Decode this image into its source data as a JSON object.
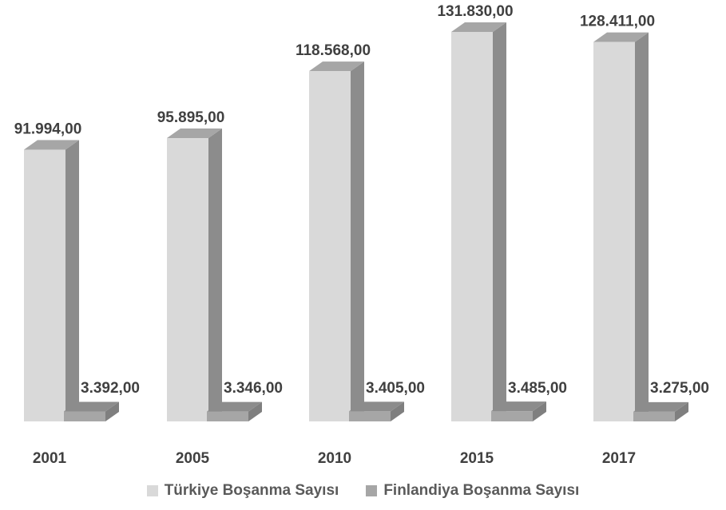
{
  "chart_data": {
    "type": "bar",
    "three_d": true,
    "categories": [
      "2001",
      "2005",
      "2010",
      "2015",
      "2017"
    ],
    "series": [
      {
        "name": "Türkiye Boşanma Sayısı",
        "values": [
          91994,
          95895,
          118568,
          131830,
          128411
        ],
        "labels": [
          "91.994,00",
          "95.895,00",
          "118.568,00",
          "131.830,00",
          "128.411,00"
        ],
        "color": "#d9d9d9"
      },
      {
        "name": "Finlandiya Boşanma Sayısı",
        "values": [
          3392,
          3346,
          3405,
          3485,
          3275
        ],
        "labels": [
          "3.392,00",
          "3.346,00",
          "3.405,00",
          "3.485,00",
          "3.275,00"
        ],
        "color": "#a6a6a6"
      }
    ],
    "ylim": [
      0,
      131830
    ],
    "grid": false,
    "legend_position": "bottom"
  }
}
